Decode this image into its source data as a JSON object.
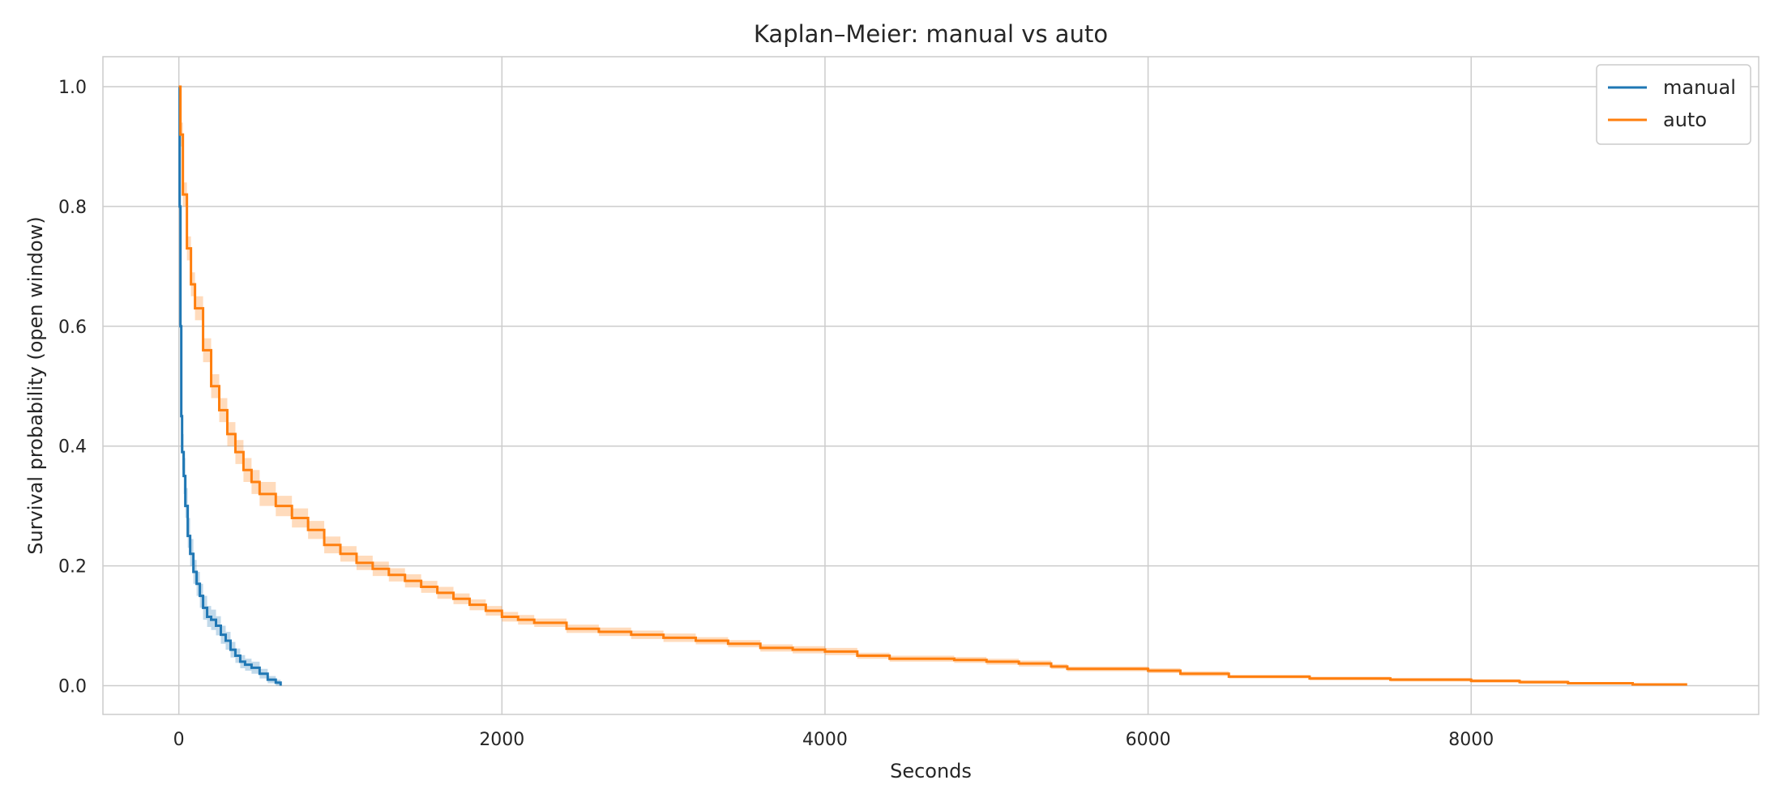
{
  "chart_data": {
    "type": "line",
    "title": "Kaplan–Meier: manual vs auto",
    "xlabel": "Seconds",
    "ylabel": "Survival probability (open window)",
    "xlim": [
      -470,
      9780
    ],
    "ylim": [
      -0.048,
      1.05
    ],
    "xticks": [
      0,
      2000,
      4000,
      6000,
      8000
    ],
    "yticks": [
      0.0,
      0.2,
      0.4,
      0.6,
      0.8,
      1.0
    ],
    "xtick_labels": [
      "0",
      "2000",
      "4000",
      "6000",
      "8000"
    ],
    "ytick_labels": [
      "0.0",
      "0.2",
      "0.4",
      "0.6",
      "0.8",
      "1.0"
    ],
    "grid": true,
    "legend": "top-right",
    "colors": {
      "manual": "#1f77b4",
      "auto": "#ff7f0e",
      "grid": "#cccccc",
      "spine": "#cccccc"
    },
    "series": [
      {
        "name": "manual",
        "color": "#1f77b4",
        "x": [
          0,
          5,
          10,
          15,
          20,
          30,
          40,
          55,
          70,
          90,
          110,
          130,
          150,
          175,
          200,
          230,
          260,
          290,
          320,
          350,
          380,
          410,
          450,
          500,
          550,
          600,
          630
        ],
        "y": [
          1.0,
          0.8,
          0.6,
          0.45,
          0.39,
          0.35,
          0.3,
          0.25,
          0.22,
          0.19,
          0.17,
          0.15,
          0.13,
          0.115,
          0.11,
          0.1,
          0.085,
          0.075,
          0.06,
          0.05,
          0.04,
          0.035,
          0.03,
          0.02,
          0.01,
          0.005,
          0.0
        ],
        "ci_lower": [
          1.0,
          0.78,
          0.57,
          0.42,
          0.36,
          0.32,
          0.28,
          0.23,
          0.2,
          0.17,
          0.15,
          0.13,
          0.11,
          0.098,
          0.093,
          0.084,
          0.07,
          0.06,
          0.047,
          0.038,
          0.029,
          0.025,
          0.02,
          0.012,
          0.004,
          0.0,
          0.0
        ],
        "ci_upper": [
          1.0,
          0.82,
          0.63,
          0.48,
          0.42,
          0.38,
          0.33,
          0.28,
          0.245,
          0.21,
          0.19,
          0.17,
          0.15,
          0.133,
          0.127,
          0.116,
          0.1,
          0.09,
          0.073,
          0.062,
          0.051,
          0.045,
          0.04,
          0.028,
          0.016,
          0.01,
          0.004
        ]
      },
      {
        "name": "auto",
        "color": "#ff7f0e",
        "x": [
          0,
          10,
          25,
          50,
          75,
          100,
          150,
          200,
          250,
          300,
          350,
          400,
          450,
          500,
          600,
          700,
          800,
          900,
          1000,
          1100,
          1200,
          1300,
          1400,
          1500,
          1600,
          1700,
          1800,
          1900,
          2000,
          2100,
          2200,
          2400,
          2600,
          2800,
          3000,
          3200,
          3400,
          3600,
          3800,
          4000,
          4200,
          4400,
          4600,
          4800,
          5000,
          5200,
          5400,
          5500,
          5800,
          6000,
          6200,
          6500,
          7000,
          7500,
          8000,
          8300,
          8600,
          9000,
          9330
        ],
        "y": [
          1.0,
          0.92,
          0.82,
          0.73,
          0.67,
          0.63,
          0.56,
          0.5,
          0.46,
          0.42,
          0.39,
          0.36,
          0.34,
          0.32,
          0.3,
          0.28,
          0.26,
          0.235,
          0.22,
          0.205,
          0.195,
          0.185,
          0.175,
          0.165,
          0.155,
          0.145,
          0.135,
          0.125,
          0.115,
          0.11,
          0.105,
          0.095,
          0.09,
          0.085,
          0.08,
          0.075,
          0.07,
          0.063,
          0.06,
          0.057,
          0.05,
          0.045,
          0.045,
          0.043,
          0.04,
          0.037,
          0.032,
          0.028,
          0.028,
          0.025,
          0.02,
          0.015,
          0.012,
          0.01,
          0.008,
          0.006,
          0.004,
          0.002,
          0.0
        ],
        "ci_lower": [
          1.0,
          0.9,
          0.8,
          0.71,
          0.65,
          0.61,
          0.54,
          0.48,
          0.44,
          0.4,
          0.37,
          0.34,
          0.32,
          0.3,
          0.283,
          0.264,
          0.245,
          0.221,
          0.207,
          0.193,
          0.183,
          0.174,
          0.164,
          0.155,
          0.145,
          0.136,
          0.126,
          0.117,
          0.107,
          0.102,
          0.098,
          0.088,
          0.083,
          0.078,
          0.073,
          0.069,
          0.064,
          0.057,
          0.054,
          0.051,
          0.045,
          0.04,
          0.04,
          0.038,
          0.035,
          0.032,
          0.028,
          0.024,
          0.024,
          0.021,
          0.016,
          0.012,
          0.009,
          0.007,
          0.005,
          0.003,
          0.002,
          0.0,
          0.0
        ],
        "ci_upper": [
          1.0,
          0.94,
          0.84,
          0.75,
          0.69,
          0.65,
          0.58,
          0.52,
          0.48,
          0.44,
          0.41,
          0.38,
          0.36,
          0.34,
          0.317,
          0.296,
          0.275,
          0.249,
          0.233,
          0.217,
          0.207,
          0.196,
          0.186,
          0.175,
          0.165,
          0.154,
          0.144,
          0.133,
          0.123,
          0.118,
          0.112,
          0.102,
          0.097,
          0.092,
          0.087,
          0.081,
          0.076,
          0.069,
          0.066,
          0.063,
          0.055,
          0.05,
          0.05,
          0.048,
          0.045,
          0.042,
          0.036,
          0.032,
          0.032,
          0.029,
          0.024,
          0.018,
          0.015,
          0.013,
          0.011,
          0.009,
          0.006,
          0.004,
          0.002
        ]
      }
    ]
  }
}
